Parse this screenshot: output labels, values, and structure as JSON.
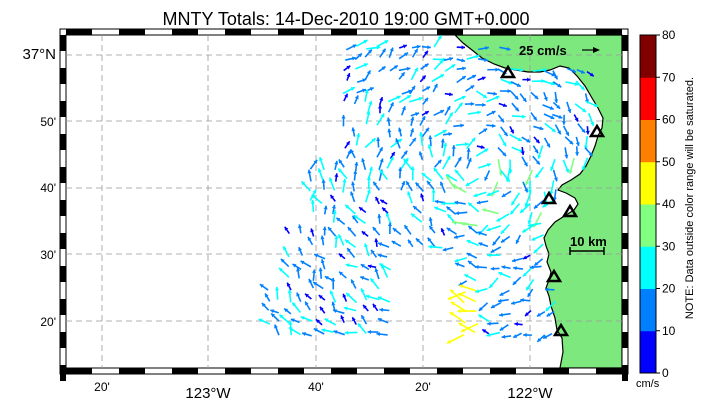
{
  "map": {
    "title": "MNTY Totals: 14-Dec-2010 19:00 GMT+0.000",
    "lat_labels": [
      "37°N",
      "50'",
      "40'",
      "30'",
      "20'"
    ],
    "lon_labels": [
      "20'",
      "123°W",
      "40'",
      "20'",
      "122°W"
    ],
    "scale_vector_label": "25 cm/s",
    "scale_bar_label": "10 km",
    "land_color": "#7de87d",
    "ocean_color": "#ffffff",
    "stations": [
      "site-1",
      "site-2",
      "site-3",
      "site-4",
      "site-5",
      "site-6"
    ]
  },
  "colorbar": {
    "ticks": [
      "80",
      "70",
      "60",
      "50",
      "40",
      "30",
      "20",
      "10",
      "0"
    ],
    "unit": "cm/s",
    "note": "NOTE: Data outside color range will be saturated.",
    "colors": [
      "#0000ff",
      "#0080ff",
      "#00ffff",
      "#80ff80",
      "#ffff00",
      "#ff8000",
      "#ff0000",
      "#800000"
    ]
  }
}
